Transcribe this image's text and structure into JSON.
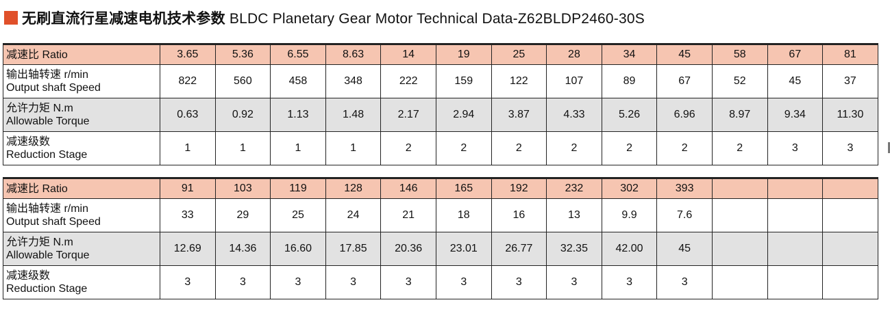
{
  "title": {
    "zh": "无刷直流行星减速电机技术参数",
    "en": "BLDC Planetary Gear Motor Technical Data-Z62BLDP2460-30S",
    "accent_color": "#e0502a"
  },
  "labels": {
    "ratio": "减速比 Ratio",
    "speed_zh": "输出轴转速 r/min",
    "speed_en": "Output shaft Speed",
    "torque_zh": "允许力矩 N.m",
    "torque_en": "Allowable Torque",
    "stage_zh": "减速级数",
    "stage_en": "Reduction Stage"
  },
  "tables": [
    {
      "ratio": [
        "3.65",
        "5.36",
        "6.55",
        "8.63",
        "14",
        "19",
        "25",
        "28",
        "34",
        "45",
        "58",
        "67",
        "81"
      ],
      "speed": [
        "822",
        "560",
        "458",
        "348",
        "222",
        "159",
        "122",
        "107",
        "89",
        "67",
        "52",
        "45",
        "37"
      ],
      "torque": [
        "0.63",
        "0.92",
        "1.13",
        "1.48",
        "2.17",
        "2.94",
        "3.87",
        "4.33",
        "5.26",
        "6.96",
        "8.97",
        "9.34",
        "11.30"
      ],
      "stage": [
        "1",
        "1",
        "1",
        "1",
        "2",
        "2",
        "2",
        "2",
        "2",
        "2",
        "2",
        "3",
        "3"
      ]
    },
    {
      "ratio": [
        "91",
        "103",
        "119",
        "128",
        "146",
        "165",
        "192",
        "232",
        "302",
        "393",
        "",
        "",
        ""
      ],
      "speed": [
        "33",
        "29",
        "25",
        "24",
        "21",
        "18",
        "16",
        "13",
        "9.9",
        "7.6",
        "",
        "",
        ""
      ],
      "torque": [
        "12.69",
        "14.36",
        "16.60",
        "17.85",
        "20.36",
        "23.01",
        "26.77",
        "32.35",
        "42.00",
        "45",
        "",
        "",
        ""
      ],
      "stage": [
        "3",
        "3",
        "3",
        "3",
        "3",
        "3",
        "3",
        "3",
        "3",
        "3",
        "",
        "",
        ""
      ]
    }
  ],
  "colors": {
    "ratio_row_bg": "#f6c5b1",
    "shaded_row_bg": "#e2e2e2"
  }
}
